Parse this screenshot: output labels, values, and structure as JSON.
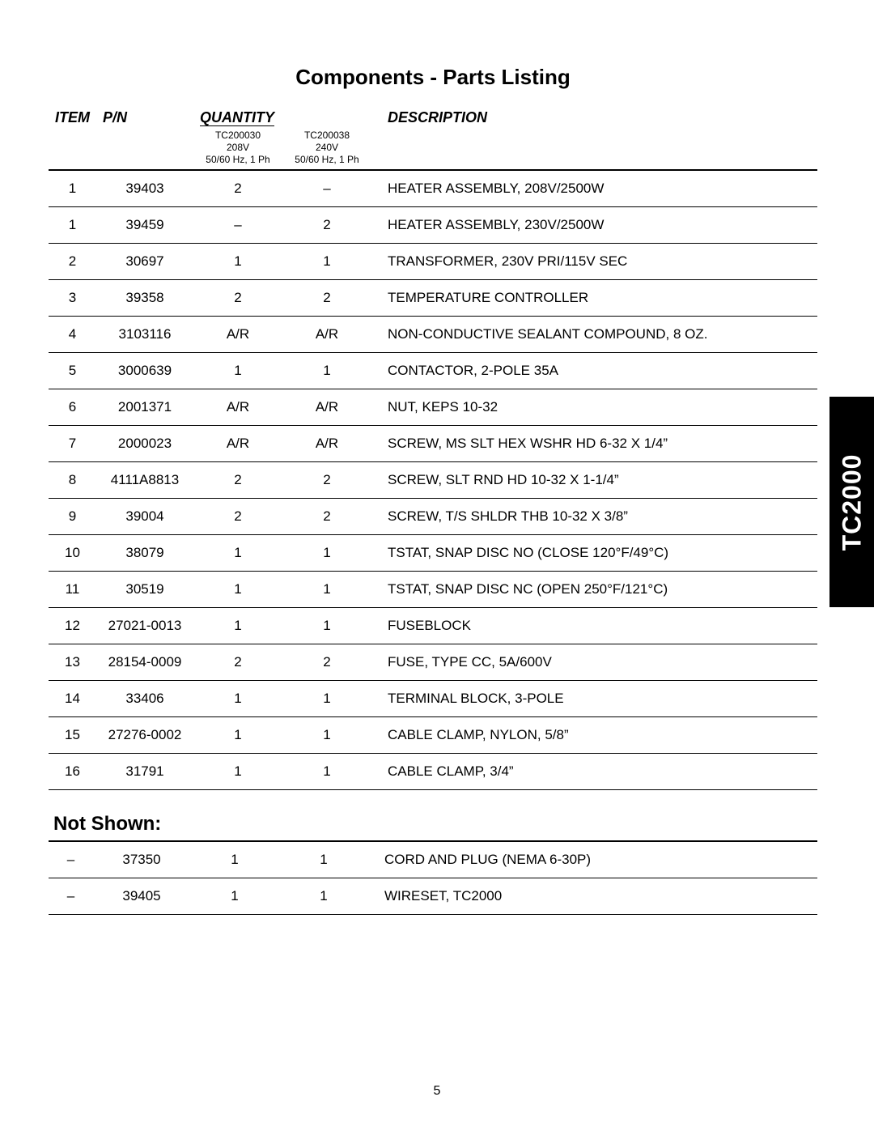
{
  "title": "Components - Parts Listing",
  "side_tab": "TC2000",
  "page_number": "5",
  "headers": {
    "item": "ITEM",
    "pn": "P/N",
    "quantity": "QUANTITY",
    "description": "DESCRIPTION"
  },
  "variants": [
    {
      "model": "TC200030",
      "voltage": "208V",
      "freq": "50/60 Hz, 1 Ph"
    },
    {
      "model": "TC200038",
      "voltage": "240V",
      "freq": "50/60 Hz, 1 Ph"
    }
  ],
  "rows": [
    {
      "item": "1",
      "pn": "39403",
      "q1": "2",
      "q2": "–",
      "desc": "HEATER ASSEMBLY, 208V/2500W"
    },
    {
      "item": "1",
      "pn": "39459",
      "q1": "–",
      "q2": "2",
      "desc": "HEATER ASSEMBLY, 230V/2500W"
    },
    {
      "item": "2",
      "pn": "30697",
      "q1": "1",
      "q2": "1",
      "desc": "TRANSFORMER, 230V PRI/115V SEC"
    },
    {
      "item": "3",
      "pn": "39358",
      "q1": "2",
      "q2": "2",
      "desc": "TEMPERATURE CONTROLLER"
    },
    {
      "item": "4",
      "pn": "3103116",
      "q1": "A/R",
      "q2": "A/R",
      "desc": "NON-CONDUCTIVE SEALANT COMPOUND, 8 OZ."
    },
    {
      "item": "5",
      "pn": "3000639",
      "q1": "1",
      "q2": "1",
      "desc": "CONTACTOR, 2-POLE 35A"
    },
    {
      "item": "6",
      "pn": "2001371",
      "q1": "A/R",
      "q2": "A/R",
      "desc": "NUT, KEPS 10-32"
    },
    {
      "item": "7",
      "pn": "2000023",
      "q1": "A/R",
      "q2": "A/R",
      "desc": "SCREW, MS SLT HEX WSHR HD 6-32 X 1/4”"
    },
    {
      "item": "8",
      "pn": "4111A8813",
      "q1": "2",
      "q2": "2",
      "desc": "SCREW, SLT RND HD 10-32 X 1-1/4”"
    },
    {
      "item": "9",
      "pn": "39004",
      "q1": "2",
      "q2": "2",
      "desc": "SCREW, T/S SHLDR THB 10-32 X 3/8”"
    },
    {
      "item": "10",
      "pn": "38079",
      "q1": "1",
      "q2": "1",
      "desc": "TSTAT, SNAP DISC NO (CLOSE 120°F/49°C)"
    },
    {
      "item": "11",
      "pn": "30519",
      "q1": "1",
      "q2": "1",
      "desc": "TSTAT, SNAP DISC NC (OPEN 250°F/121°C)"
    },
    {
      "item": "12",
      "pn": "27021-0013",
      "q1": "1",
      "q2": "1",
      "desc": "FUSEBLOCK"
    },
    {
      "item": "13",
      "pn": "28154-0009",
      "q1": "2",
      "q2": "2",
      "desc": "FUSE, TYPE CC, 5A/600V"
    },
    {
      "item": "14",
      "pn": "33406",
      "q1": "1",
      "q2": "1",
      "desc": "TERMINAL BLOCK, 3-POLE"
    },
    {
      "item": "15",
      "pn": "27276-0002",
      "q1": "1",
      "q2": "1",
      "desc": "CABLE CLAMP, NYLON, 5/8”"
    },
    {
      "item": "16",
      "pn": "31791",
      "q1": "1",
      "q2": "1",
      "desc": "CABLE CLAMP, 3/4”"
    }
  ],
  "not_shown_heading": "Not Shown:",
  "not_shown_rows": [
    {
      "item": "–",
      "pn": "37350",
      "q1": "1",
      "q2": "1",
      "desc": "CORD AND PLUG (NEMA 6-30P)"
    },
    {
      "item": "–",
      "pn": "39405",
      "q1": "1",
      "q2": "1",
      "desc": "WIRESET, TC2000"
    }
  ]
}
